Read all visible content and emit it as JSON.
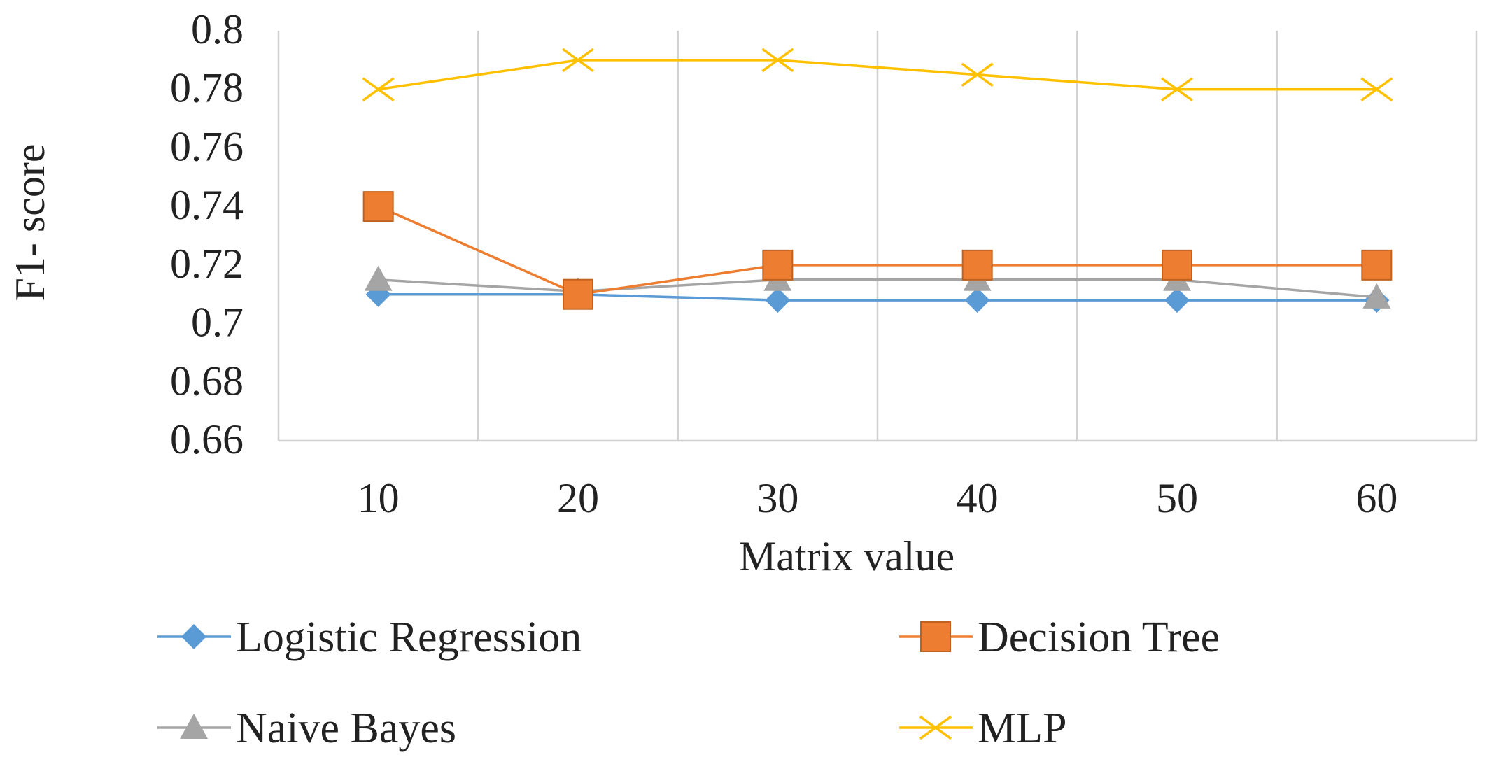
{
  "chart_data": {
    "type": "line",
    "title": "",
    "xlabel": "Matrix value",
    "ylabel": "F1- score",
    "categories": [
      "10",
      "20",
      "30",
      "40",
      "50",
      "60"
    ],
    "yticks": [
      "0.66",
      "0.68",
      "0.7",
      "0.72",
      "0.74",
      "0.76",
      "0.78",
      "0.8"
    ],
    "ylim": [
      0.66,
      0.8
    ],
    "grid": "vertical",
    "legend_position": "bottom",
    "series": [
      {
        "name": "Logistic Regression",
        "values": [
          0.71,
          0.71,
          0.708,
          0.708,
          0.708,
          0.708
        ],
        "color": "#5B9BD5",
        "marker": "diamond"
      },
      {
        "name": "Decision Tree",
        "values": [
          0.74,
          0.71,
          0.72,
          0.72,
          0.72,
          0.72
        ],
        "color": "#ED7D31",
        "marker": "square"
      },
      {
        "name": "Naive Bayes",
        "values": [
          0.715,
          0.711,
          0.715,
          0.715,
          0.715,
          0.709
        ],
        "color": "#A5A5A5",
        "marker": "triangle"
      },
      {
        "name": "MLP",
        "values": [
          0.78,
          0.79,
          0.79,
          0.785,
          0.78,
          0.78
        ],
        "color": "#FFC000",
        "marker": "x"
      }
    ]
  }
}
